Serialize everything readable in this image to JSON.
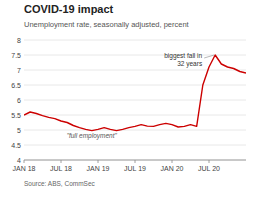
{
  "chart_data": {
    "type": "line",
    "title": "COVID-19 impact",
    "subtitle": "Unemployment rate, seasonally adjusted, percent",
    "source": "Source: ABS, CommSec",
    "annotations": [
      "biggest fall in\n32 years",
      "\"full employment\""
    ],
    "color": "#cc0000",
    "x": [
      0,
      0.5,
      1,
      1.5,
      2,
      2.5,
      3,
      3.5,
      4,
      4.5,
      5,
      5.5,
      6,
      6.5,
      7,
      7.5,
      8,
      8.5,
      9,
      9.5,
      10,
      10.5,
      11,
      11.5,
      12,
      12.5,
      13,
      13.5,
      14,
      14.5,
      15,
      15.5,
      16,
      16.5,
      17,
      17.5,
      18
    ],
    "values": [
      5.5,
      5.6,
      5.55,
      5.48,
      5.42,
      5.38,
      5.3,
      5.25,
      5.15,
      5.08,
      5.02,
      4.98,
      5.02,
      5.08,
      5.02,
      4.98,
      5.02,
      5.08,
      5.12,
      5.18,
      5.13,
      5.12,
      5.18,
      5.22,
      5.18,
      5.1,
      5.12,
      5.18,
      5.12,
      6.5,
      7.1,
      7.5,
      7.2,
      7.1,
      7.05,
      6.95,
      6.9
    ],
    "xlim": [
      0,
      18
    ],
    "xticks": [
      {
        "value": 0,
        "label": "JAN 18"
      },
      {
        "value": 3,
        "label": "JUL 18"
      },
      {
        "value": 6,
        "label": "JAN 19"
      },
      {
        "value": 9,
        "label": "JUL 19"
      },
      {
        "value": 12,
        "label": "JAN 20"
      },
      {
        "value": 15,
        "label": "JUL 20"
      }
    ],
    "ylim": [
      4,
      8
    ],
    "yticks": [
      4,
      4.5,
      5,
      5.5,
      6,
      6.5,
      7,
      7.5,
      8
    ],
    "grid": true
  }
}
